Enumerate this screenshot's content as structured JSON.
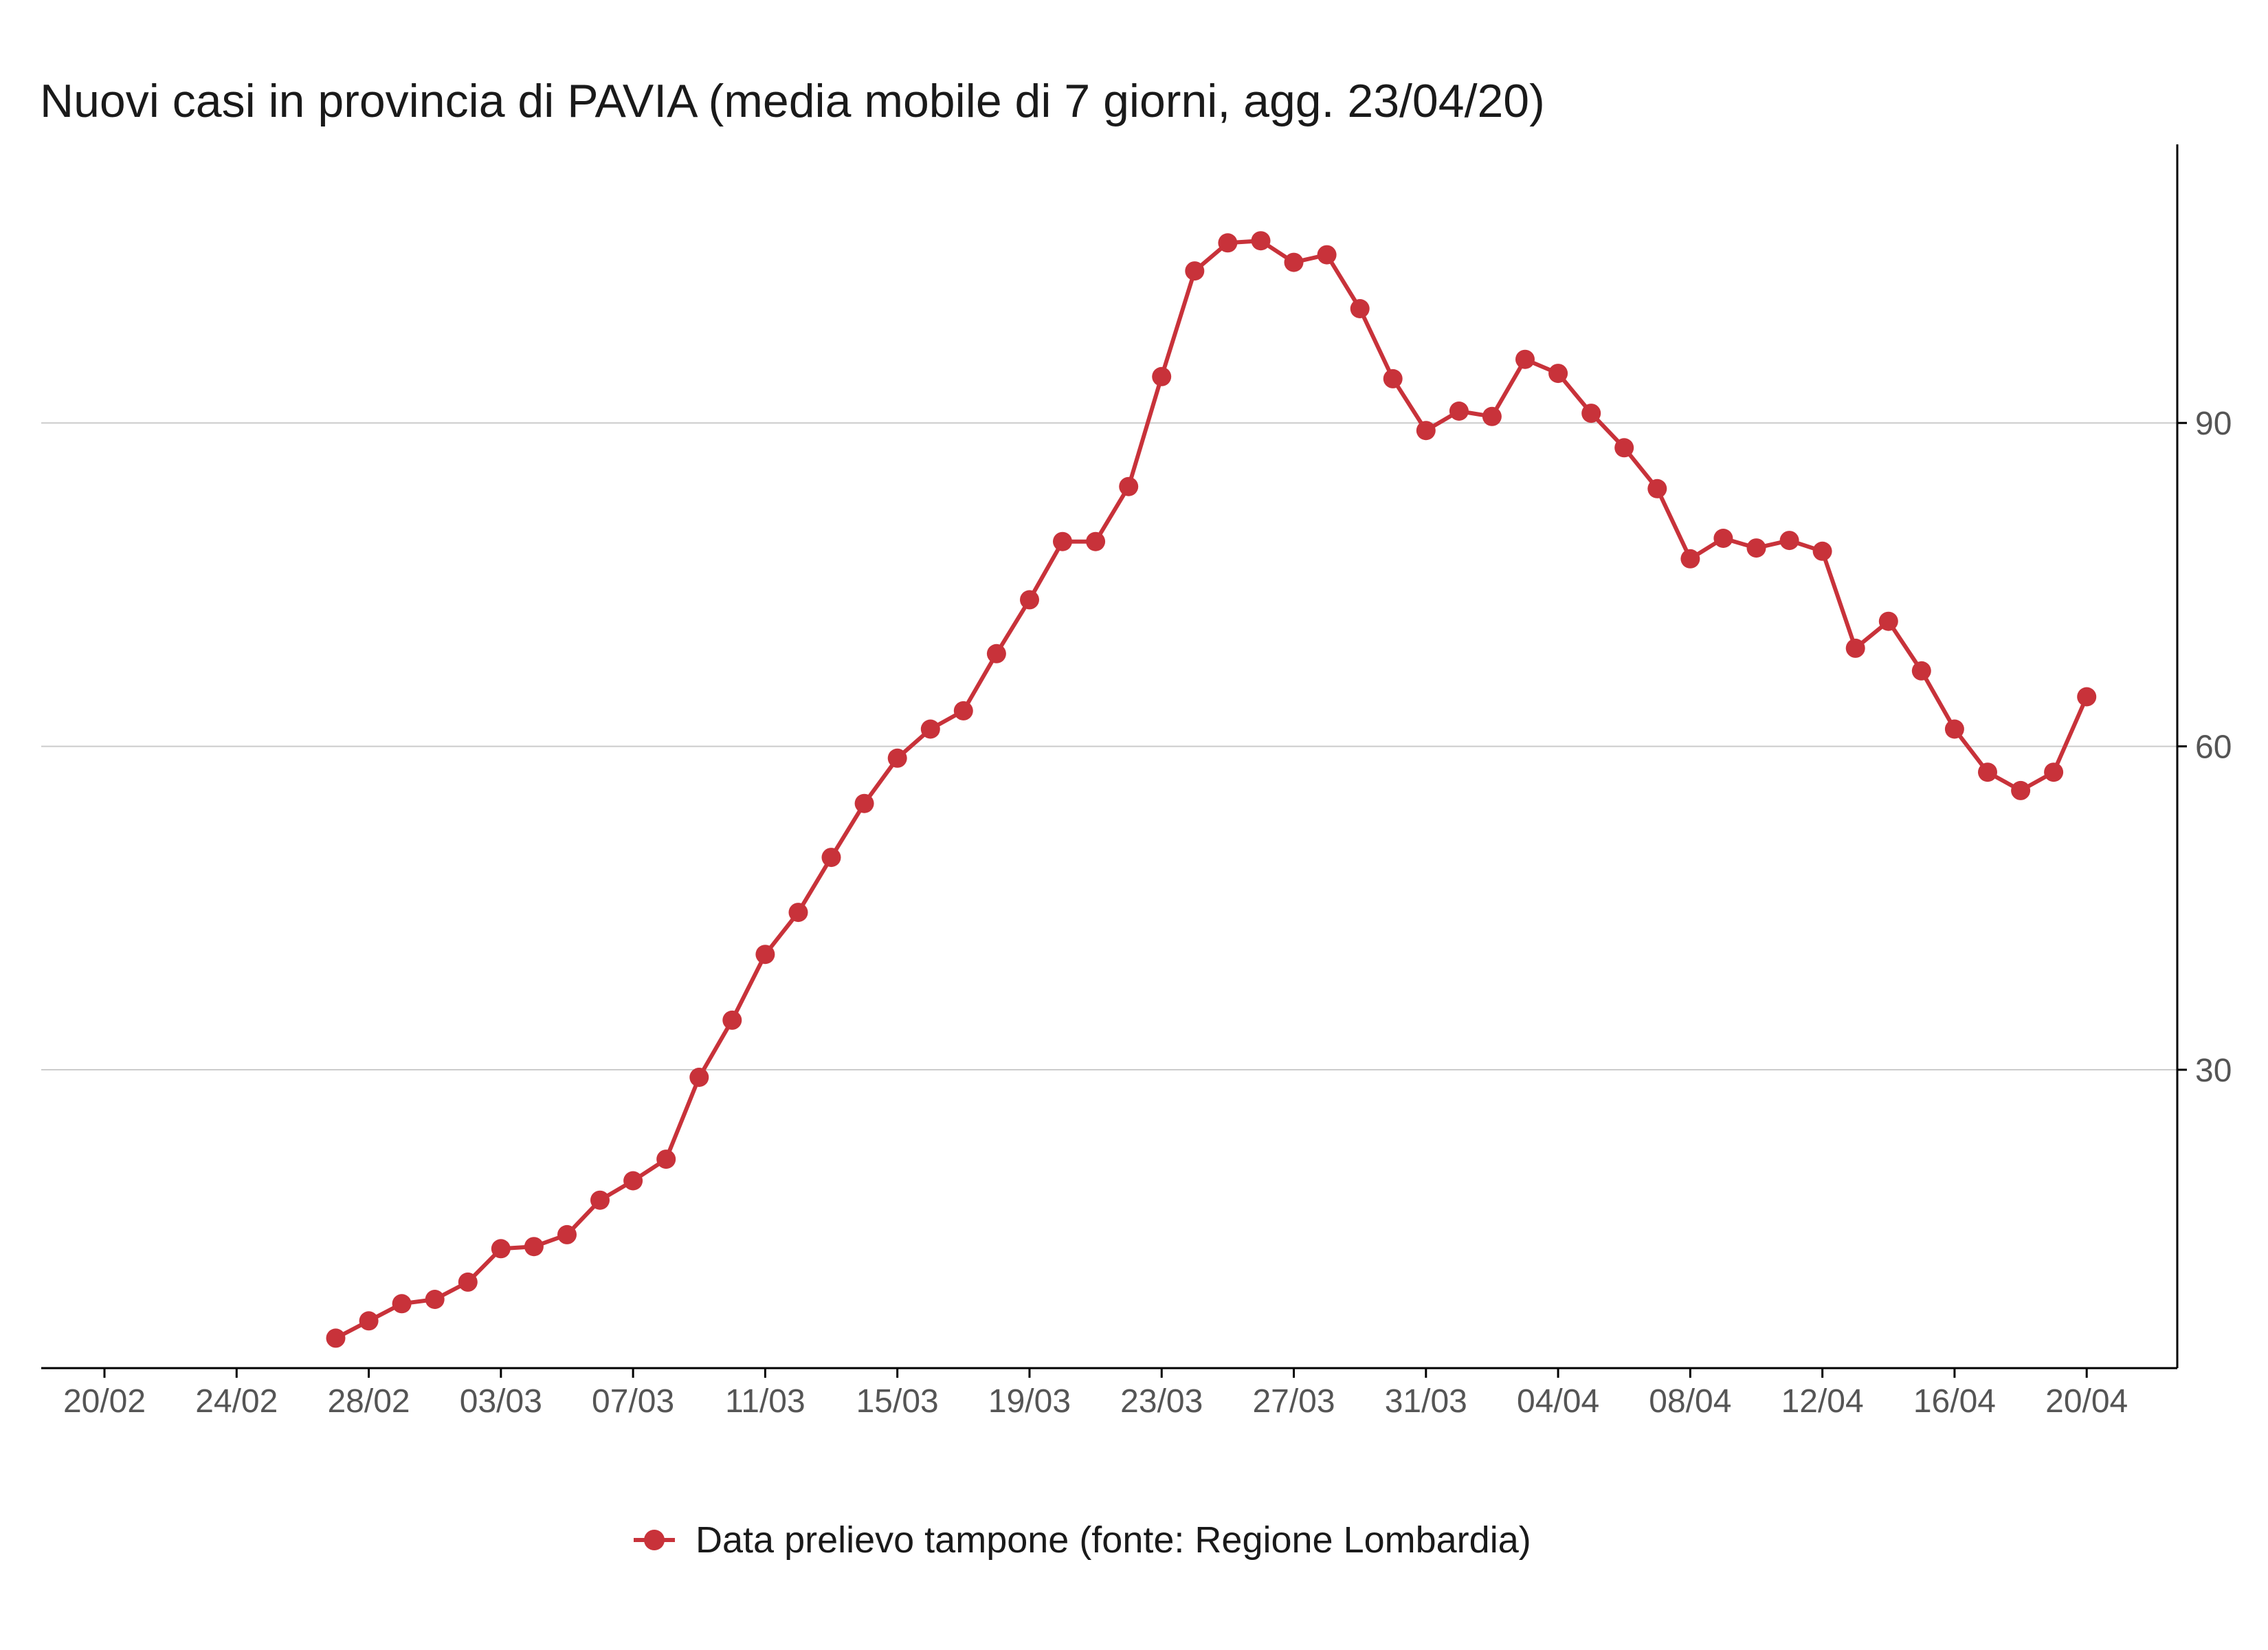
{
  "chart_data": {
    "type": "line",
    "title": "Nuovi casi in provincia di PAVIA (media mobile di 7 giorni, agg. 23/04/20)",
    "xlabel": "",
    "ylabel": "",
    "x_range": [
      "20/02",
      "22/04"
    ],
    "ylim": [
      5,
      117
    ],
    "y_axis_position": "right",
    "grid": "horizontal",
    "legend_position": "bottom",
    "x_ticks": [
      "20/02",
      "24/02",
      "28/02",
      "03/03",
      "07/03",
      "11/03",
      "15/03",
      "19/03",
      "23/03",
      "27/03",
      "31/03",
      "04/04",
      "08/04",
      "12/04",
      "16/04",
      "20/04"
    ],
    "y_ticks": [
      30,
      60,
      90
    ],
    "colors": {
      "series": "#c8323a",
      "grid": "#cccccc",
      "axis": "#000000"
    },
    "series": [
      {
        "name": "Data prelievo tampone (fonte: Regione Lombardia)",
        "x": [
          "27/02",
          "28/02",
          "29/02",
          "01/03",
          "02/03",
          "03/03",
          "04/03",
          "05/03",
          "06/03",
          "07/03",
          "08/03",
          "09/03",
          "10/03",
          "11/03",
          "12/03",
          "13/03",
          "14/03",
          "15/03",
          "16/03",
          "17/03",
          "18/03",
          "19/03",
          "20/03",
          "21/03",
          "22/03",
          "23/03",
          "24/03",
          "25/03",
          "26/03",
          "27/03",
          "28/03",
          "29/03",
          "30/03",
          "31/03",
          "01/04",
          "02/04",
          "03/04",
          "04/04",
          "05/04",
          "06/04",
          "07/04",
          "08/04",
          "09/04",
          "10/04",
          "11/04",
          "12/04",
          "13/04",
          "14/04",
          "15/04",
          "16/04",
          "17/04",
          "18/04",
          "19/04",
          "20/04"
        ],
        "values": [
          5.1,
          6.7,
          8.3,
          8.7,
          10.3,
          13.4,
          13.6,
          14.7,
          17.9,
          19.7,
          21.7,
          29.3,
          34.6,
          40.7,
          44.6,
          49.7,
          54.7,
          58.9,
          61.6,
          63.3,
          68.6,
          73.6,
          79.0,
          79.0,
          84.1,
          94.3,
          104.1,
          106.7,
          106.9,
          104.9,
          105.6,
          100.6,
          94.1,
          89.3,
          91.1,
          90.6,
          95.9,
          94.6,
          90.9,
          87.7,
          83.9,
          77.4,
          79.3,
          78.4,
          79.1,
          78.1,
          69.1,
          71.6,
          67.0,
          61.6,
          57.6,
          55.9,
          57.6,
          64.6
        ]
      }
    ]
  }
}
